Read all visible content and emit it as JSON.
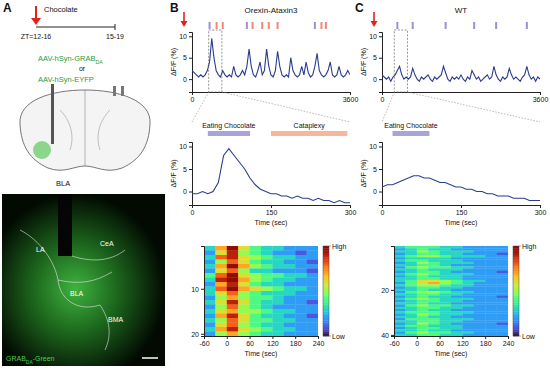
{
  "panel_labels": [
    "A",
    "B",
    "C"
  ],
  "schematic": {
    "timeline": {
      "event": "Chocolate",
      "start": "ZT=12-16",
      "end": "15-19"
    },
    "viruses": [
      {
        "text": "AAV-hSyn-GRAB",
        "subscript": "DA"
      },
      {
        "text": "AAV-hSyn-EYFP"
      }
    ],
    "connector": "or",
    "region": "BLA"
  },
  "histology": {
    "regions": [
      "LA",
      "CeA",
      "BLA",
      "BMA"
    ],
    "label": {
      "text": "GRAB",
      "subscript": "DA",
      "suffix": "-Green"
    }
  },
  "chart_data": [
    {
      "type": "line",
      "title": "Orexin-Ataxin3",
      "y_label": "ΔF/F (%)",
      "color": "#2a3d8f",
      "x": [
        0,
        50,
        100,
        150,
        200,
        250,
        300,
        350,
        400,
        450,
        500,
        550,
        600,
        650,
        700,
        750,
        800,
        850,
        900,
        950,
        1000,
        1050,
        1100,
        1150,
        1200,
        1250,
        1300,
        1350,
        1400,
        1450,
        1500,
        1550,
        1600,
        1650,
        1700,
        1750,
        1800,
        1850,
        1900,
        1950,
        2000,
        2050,
        2100,
        2150,
        2200,
        2250,
        2300,
        2350,
        2400,
        2450,
        2500,
        2550,
        2600,
        2650,
        2700,
        2750,
        2800,
        2850,
        2900,
        2950,
        3000,
        3050,
        3100,
        3150,
        3200,
        3250,
        3300,
        3350,
        3400,
        3450,
        3500,
        3550,
        3600
      ],
      "values": [
        2,
        1.5,
        1,
        0.5,
        1,
        0.5,
        1,
        2,
        4,
        9.5,
        5,
        2,
        1,
        0.5,
        2,
        1,
        0.5,
        1,
        0.5,
        3,
        1,
        0.5,
        1,
        2,
        1,
        3,
        7,
        3,
        1,
        0.5,
        2,
        4,
        1,
        2,
        7,
        3,
        1,
        0.5,
        2,
        6.5,
        3,
        1,
        0.5,
        1,
        0.5,
        5,
        2,
        1,
        0.5,
        1,
        3,
        1,
        4,
        1.5,
        0.5,
        1,
        3,
        6,
        2,
        1,
        0.5,
        1,
        2,
        4,
        1,
        0.5,
        1,
        3,
        1,
        0.5,
        1,
        2,
        1
      ],
      "xlim": [
        0,
        3600
      ],
      "xticks": [
        0,
        3600
      ],
      "ylim": [
        -3,
        11
      ],
      "yticks": [
        0,
        5,
        10
      ],
      "events": [
        {
          "color": "#9a90d8",
          "x": [
            400,
            1250,
            2800
          ]
        },
        {
          "color": "#f08878",
          "x": [
            560,
            700,
            1380,
            1600,
            1750,
            1950,
            2950,
            3050
          ]
        }
      ],
      "zoom_window": [
        380,
        680
      ]
    },
    {
      "type": "line",
      "y_label": "ΔF/F (%)",
      "x_label": "Time (sec)",
      "color": "#2a3d8f",
      "x": [
        0,
        10,
        20,
        30,
        40,
        50,
        60,
        70,
        80,
        90,
        100,
        110,
        120,
        130,
        140,
        150,
        160,
        170,
        180,
        190,
        200,
        210,
        220,
        230,
        240,
        250,
        260,
        270,
        280,
        290,
        300
      ],
      "values": [
        -0.5,
        -0.5,
        0,
        -0.5,
        0,
        2,
        8,
        9.5,
        8,
        6.5,
        5,
        3,
        1.5,
        0.5,
        0,
        -0.5,
        -0.5,
        -1,
        -1,
        -1.5,
        -1,
        -1.5,
        -1.5,
        -2,
        -1.5,
        -2,
        -2,
        -2.5,
        -2,
        -2.5,
        -2.5
      ],
      "xlim": [
        0,
        300
      ],
      "xticks": [
        0,
        150,
        300
      ],
      "ylim": [
        -3,
        11
      ],
      "yticks": [
        0,
        5,
        10
      ],
      "spans": [
        {
          "label": "Eating Chocolate",
          "start": 30,
          "end": 110,
          "color": "#a9a3dd"
        },
        {
          "label": "Cataplexy",
          "start": 150,
          "end": 295,
          "color": "#f7b79c"
        }
      ]
    },
    {
      "type": "heatmap",
      "x_label": "Time (sec)",
      "bins": [
        -60,
        -30,
        0,
        30,
        60,
        90,
        120,
        150,
        180,
        210,
        240
      ],
      "y": [
        1,
        2,
        3,
        4,
        5,
        6,
        7,
        8,
        9,
        10,
        11,
        12,
        13,
        14,
        15,
        16,
        17,
        18,
        19,
        20
      ],
      "xlim": [
        -60,
        240
      ],
      "xticks": [
        -60,
        0,
        60,
        120,
        180,
        240
      ],
      "ylim": [
        0.5,
        20.5
      ],
      "yticks": [
        10,
        20
      ],
      "cells": [
        [
          3,
          7,
          10,
          6,
          4,
          3,
          3,
          2,
          2,
          2
        ],
        [
          2,
          6,
          9,
          5,
          4,
          3,
          2,
          2,
          1,
          2
        ],
        [
          3,
          8,
          9,
          6,
          5,
          4,
          3,
          3,
          2,
          2
        ],
        [
          2,
          5,
          8,
          6,
          4,
          3,
          3,
          2,
          2,
          1
        ],
        [
          3,
          7,
          10,
          7,
          5,
          4,
          3,
          3,
          2,
          2
        ],
        [
          2,
          6,
          8,
          5,
          3,
          3,
          2,
          2,
          2,
          1
        ],
        [
          4,
          8,
          10,
          6,
          5,
          4,
          4,
          3,
          3,
          2
        ],
        [
          3,
          9,
          10,
          7,
          5,
          4,
          3,
          3,
          2,
          2
        ],
        [
          2,
          7,
          9,
          6,
          4,
          3,
          3,
          2,
          2,
          2
        ],
        [
          3,
          8,
          10,
          7,
          6,
          5,
          4,
          3,
          3,
          2
        ],
        [
          3,
          6,
          8,
          5,
          4,
          3,
          3,
          3,
          2,
          2
        ],
        [
          2,
          5,
          7,
          5,
          4,
          4,
          3,
          2,
          2,
          2
        ],
        [
          3,
          6,
          9,
          6,
          4,
          3,
          3,
          2,
          2,
          1
        ],
        [
          2,
          5,
          8,
          5,
          4,
          3,
          2,
          2,
          2,
          2
        ],
        [
          3,
          6,
          7,
          5,
          5,
          4,
          3,
          3,
          2,
          2
        ],
        [
          2,
          7,
          9,
          6,
          4,
          3,
          3,
          2,
          2,
          1
        ],
        [
          3,
          5,
          8,
          6,
          4,
          4,
          3,
          3,
          2,
          2
        ],
        [
          2,
          6,
          8,
          5,
          4,
          3,
          3,
          2,
          2,
          2
        ],
        [
          3,
          7,
          9,
          6,
          5,
          4,
          3,
          3,
          2,
          2
        ],
        [
          2,
          5,
          7,
          5,
          4,
          3,
          3,
          2,
          2,
          2
        ]
      ],
      "colorbar": {
        "range": [
          0,
          10
        ],
        "ticks": [
          {
            "value": 10,
            "label": "High"
          },
          {
            "value": 0,
            "label": "Low"
          }
        ]
      }
    },
    {
      "type": "line",
      "title": "WT",
      "y_label": "ΔF/F (%)",
      "color": "#2a3d8f",
      "x": [
        0,
        50,
        100,
        150,
        200,
        250,
        300,
        350,
        400,
        450,
        500,
        550,
        600,
        650,
        700,
        750,
        800,
        850,
        900,
        950,
        1000,
        1050,
        1100,
        1150,
        1200,
        1250,
        1300,
        1350,
        1400,
        1450,
        1500,
        1550,
        1600,
        1650,
        1700,
        1750,
        1800,
        1850,
        1900,
        1950,
        2000,
        2050,
        2100,
        2150,
        2200,
        2250,
        2300,
        2350,
        2400,
        2450,
        2500,
        2550,
        2600,
        2650,
        2700,
        2750,
        2800,
        2850,
        2900,
        2950,
        3000,
        3050,
        3100,
        3150,
        3200,
        3250,
        3300,
        3350,
        3400,
        3450,
        3500,
        3550,
        3600
      ],
      "values": [
        1,
        0.5,
        0,
        0.5,
        -0.5,
        0.5,
        1,
        2,
        3,
        1,
        0,
        0.5,
        0,
        0.5,
        2.5,
        1,
        0,
        -0.5,
        0.5,
        0,
        0.5,
        1,
        0,
        -0.5,
        0.5,
        0,
        0.5,
        1,
        3,
        1.5,
        0,
        -0.5,
        0.5,
        0,
        0.5,
        0,
        1,
        0,
        -0.5,
        0.5,
        0,
        2,
        1,
        0,
        0.5,
        -0.5,
        0,
        0.5,
        1,
        0,
        0.5,
        3,
        1,
        0,
        -0.5,
        0.5,
        0,
        0.5,
        2.5,
        1,
        0,
        0.5,
        0,
        -0.5,
        0.5,
        1,
        3,
        1,
        0,
        0.5,
        -0.5,
        0.5,
        0
      ],
      "xlim": [
        0,
        3600
      ],
      "xticks": [
        0,
        3600
      ],
      "ylim": [
        -3,
        11
      ],
      "yticks": [
        0,
        5,
        10
      ],
      "events": [
        {
          "color": "#9a90d8",
          "x": [
            350,
            700,
            1450,
            2100,
            2600,
            3300
          ]
        }
      ],
      "zoom_window": [
        280,
        580
      ]
    },
    {
      "type": "line",
      "y_label": "ΔF/F (%)",
      "x_label": "Time (sec)",
      "color": "#2a3d8f",
      "x": [
        0,
        10,
        20,
        30,
        40,
        50,
        60,
        70,
        80,
        90,
        100,
        110,
        120,
        130,
        140,
        150,
        160,
        170,
        180,
        190,
        200,
        210,
        220,
        230,
        240,
        250,
        260,
        270,
        280,
        290,
        300
      ],
      "values": [
        1,
        1.5,
        1.5,
        2,
        2.5,
        3,
        3.5,
        3.5,
        3,
        3,
        2.5,
        2,
        2,
        1.5,
        1,
        1,
        0.5,
        0.5,
        0,
        0,
        -0.5,
        -0.5,
        -1,
        -1,
        -1,
        -1.5,
        -1.5,
        -1.5,
        -2,
        -2,
        -2
      ],
      "xlim": [
        0,
        300
      ],
      "xticks": [
        0,
        150,
        300
      ],
      "ylim": [
        -3,
        11
      ],
      "yticks": [
        0,
        5,
        10
      ],
      "spans": [
        {
          "label": "Eating Chocolate",
          "start": 20,
          "end": 90,
          "color": "#a9a3dd"
        }
      ]
    },
    {
      "type": "heatmap",
      "x_label": "Time (sec)",
      "bins": [
        -60,
        -30,
        0,
        30,
        60,
        90,
        120,
        150,
        180,
        210,
        240
      ],
      "y": [
        1,
        2,
        3,
        4,
        5,
        6,
        7,
        8,
        9,
        10,
        11,
        12,
        13,
        14,
        15,
        16,
        17,
        18,
        19,
        20,
        21,
        22,
        23,
        24,
        25,
        26,
        27,
        28,
        29,
        30,
        31,
        32,
        33,
        34,
        35,
        36,
        37,
        38,
        39,
        40
      ],
      "xlim": [
        -60,
        240
      ],
      "xticks": [
        -60,
        0,
        60,
        120,
        180,
        240
      ],
      "ylim": [
        0.5,
        40.5
      ],
      "yticks": [
        20,
        40
      ],
      "cells": [
        [
          3,
          4,
          4,
          4,
          3,
          3,
          2,
          2,
          2,
          2
        ],
        [
          2,
          3,
          4,
          3,
          3,
          2,
          2,
          2,
          2,
          2
        ],
        [
          3,
          3,
          5,
          4,
          3,
          3,
          3,
          2,
          2,
          2
        ],
        [
          2,
          3,
          4,
          4,
          3,
          3,
          2,
          2,
          2,
          1
        ],
        [
          3,
          4,
          5,
          5,
          4,
          3,
          3,
          3,
          2,
          2
        ],
        [
          2,
          3,
          3,
          3,
          3,
          2,
          2,
          2,
          2,
          2
        ],
        [
          3,
          4,
          4,
          3,
          3,
          3,
          2,
          2,
          2,
          2
        ],
        [
          2,
          3,
          5,
          4,
          3,
          3,
          3,
          2,
          2,
          2
        ],
        [
          3,
          3,
          4,
          4,
          3,
          2,
          2,
          2,
          2,
          2
        ],
        [
          2,
          4,
          5,
          4,
          4,
          3,
          3,
          2,
          2,
          2
        ],
        [
          3,
          3,
          4,
          3,
          3,
          3,
          2,
          2,
          2,
          2
        ],
        [
          2,
          3,
          4,
          4,
          3,
          2,
          2,
          2,
          2,
          1
        ],
        [
          3,
          4,
          5,
          4,
          3,
          3,
          3,
          2,
          2,
          2
        ],
        [
          2,
          3,
          4,
          3,
          3,
          3,
          2,
          2,
          2,
          2
        ],
        [
          3,
          3,
          4,
          4,
          3,
          3,
          2,
          2,
          2,
          2
        ],
        [
          3,
          4,
          6,
          6,
          5,
          4,
          3,
          3,
          2,
          2
        ],
        [
          2,
          4,
          6,
          7,
          5,
          4,
          3,
          2,
          2,
          2
        ],
        [
          3,
          4,
          5,
          5,
          4,
          3,
          3,
          2,
          2,
          2
        ],
        [
          2,
          3,
          4,
          4,
          3,
          3,
          2,
          2,
          2,
          2
        ],
        [
          3,
          3,
          4,
          3,
          3,
          2,
          2,
          2,
          2,
          2
        ],
        [
          2,
          4,
          5,
          5,
          4,
          3,
          3,
          2,
          2,
          2
        ],
        [
          3,
          3,
          4,
          4,
          3,
          3,
          2,
          2,
          2,
          2
        ],
        [
          2,
          3,
          4,
          3,
          3,
          2,
          2,
          2,
          2,
          1
        ],
        [
          3,
          4,
          5,
          4,
          3,
          3,
          3,
          2,
          2,
          2
        ],
        [
          2,
          3,
          4,
          4,
          3,
          3,
          2,
          2,
          2,
          2
        ],
        [
          3,
          3,
          4,
          3,
          3,
          2,
          2,
          2,
          2,
          2
        ],
        [
          2,
          4,
          5,
          4,
          4,
          3,
          3,
          2,
          2,
          2
        ],
        [
          3,
          3,
          4,
          4,
          3,
          3,
          2,
          2,
          2,
          2
        ],
        [
          2,
          3,
          4,
          3,
          3,
          2,
          2,
          2,
          2,
          2
        ],
        [
          3,
          4,
          4,
          4,
          3,
          3,
          3,
          2,
          2,
          2
        ],
        [
          2,
          3,
          5,
          4,
          3,
          3,
          2,
          2,
          2,
          2
        ],
        [
          3,
          3,
          4,
          3,
          3,
          2,
          2,
          2,
          2,
          2
        ],
        [
          2,
          4,
          4,
          4,
          3,
          3,
          3,
          2,
          2,
          2
        ],
        [
          3,
          3,
          4,
          4,
          3,
          3,
          2,
          2,
          2,
          2
        ],
        [
          2,
          3,
          5,
          4,
          3,
          2,
          2,
          2,
          2,
          1
        ],
        [
          3,
          4,
          4,
          3,
          3,
          3,
          2,
          2,
          2,
          2
        ],
        [
          2,
          3,
          4,
          4,
          3,
          3,
          2,
          2,
          2,
          2
        ],
        [
          3,
          3,
          4,
          3,
          3,
          2,
          2,
          2,
          2,
          2
        ],
        [
          2,
          4,
          5,
          4,
          4,
          3,
          3,
          2,
          2,
          2
        ],
        [
          3,
          3,
          4,
          4,
          3,
          3,
          2,
          2,
          2,
          2
        ]
      ],
      "colorbar": {
        "range": [
          0,
          10
        ],
        "ticks": [
          {
            "value": 10,
            "label": "High"
          },
          {
            "value": 0,
            "label": "Low"
          }
        ]
      }
    }
  ]
}
